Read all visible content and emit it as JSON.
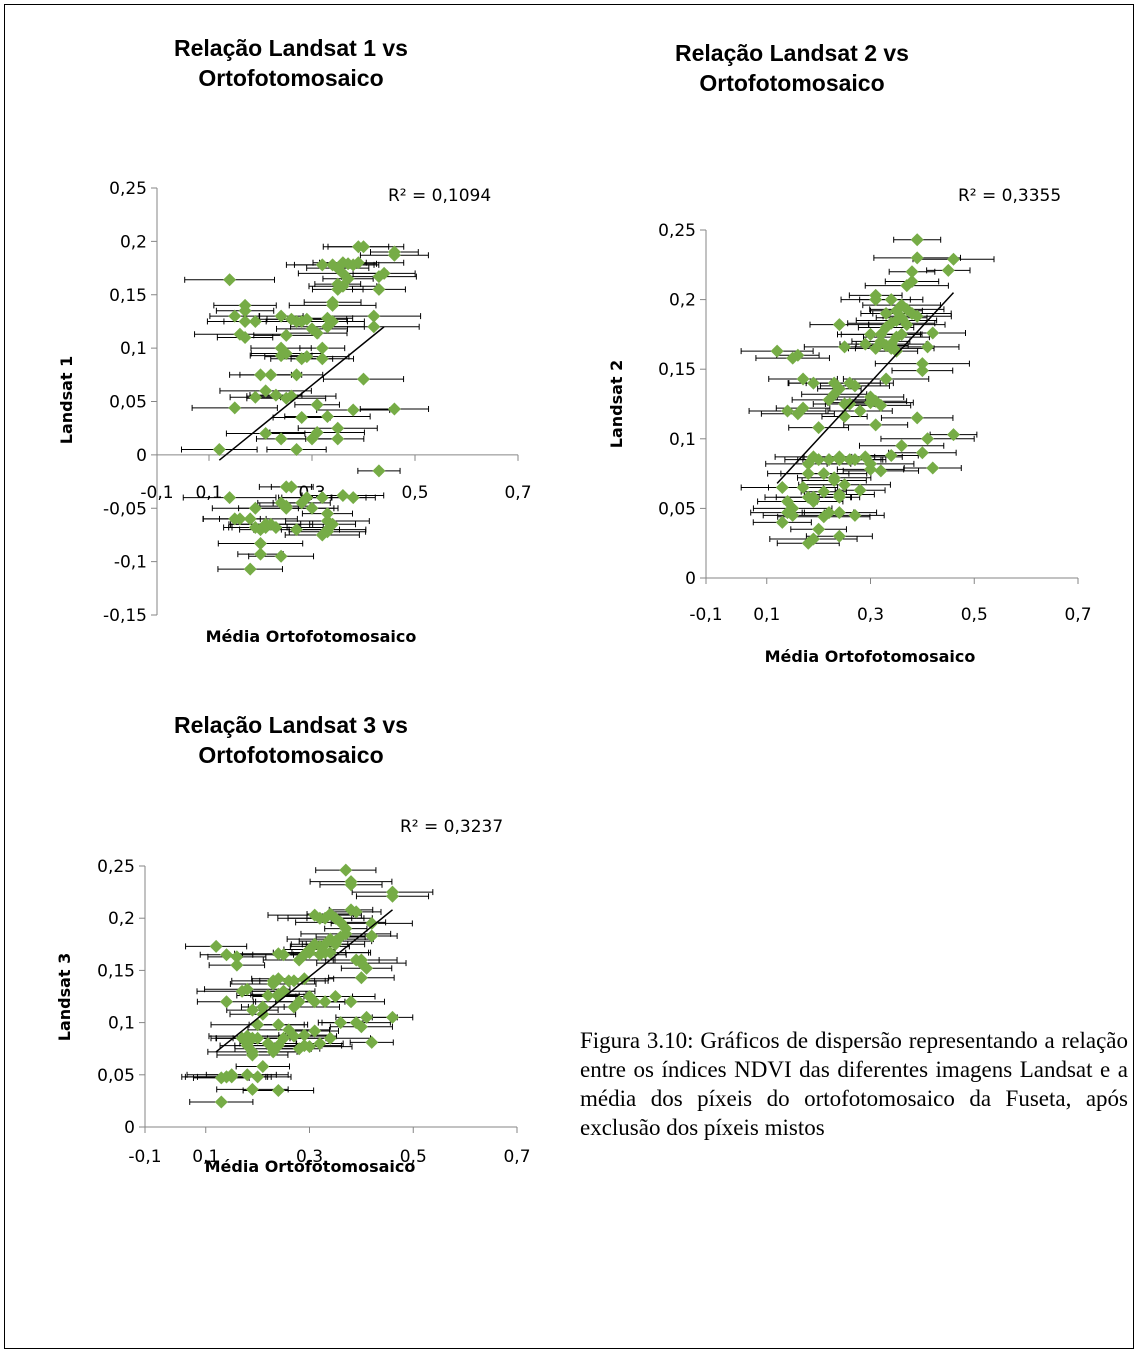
{
  "caption": "Figura 3.10: Gráficos de dispersão representando a relação entre os índices NDVI das diferentes imagens Landsat e a média dos píxeis do ortofotomosaico da Fuseta, após exclusão dos píxeis mistos",
  "colors": {
    "marker": "#76AC46",
    "axis": "#868686",
    "trendline": "#000000",
    "error_bar": "#000000"
  },
  "charts": [
    {
      "title_line1": "Relação Landsat 1 vs",
      "title_line2": "Ortofotomosaico",
      "xlabel": "Média Ortofotomosaico",
      "ylabel": "Landsat 1",
      "r2_label": "R² = 0,1094",
      "x_ticks": [
        "-0,1",
        "0,1",
        "0,3",
        "0,5",
        "0,7"
      ],
      "y_ticks": [
        "-0,15",
        "-0,1",
        "-0,05",
        "0",
        "0,05",
        "0,1",
        "0,15",
        "0,2",
        "0,25"
      ]
    },
    {
      "title_line1": "Relação Landsat 2 vs",
      "title_line2": "Ortofotomosaico",
      "xlabel": "Média Ortofotomosaico",
      "ylabel": "Landsat 2",
      "r2_label": "R² = 0,3355",
      "x_ticks": [
        "-0,1",
        "0,1",
        "0,3",
        "0,5",
        "0,7"
      ],
      "y_ticks": [
        "0",
        "0,05",
        "0,1",
        "0,15",
        "0,2",
        "0,25"
      ]
    },
    {
      "title_line1": "Relação Landsat 3 vs",
      "title_line2": "Ortofotomosaico",
      "xlabel": "Média Ortofotomosaico",
      "ylabel": "Landsat 3",
      "r2_label": "R² = 0,3237",
      "x_ticks": [
        "-0,1",
        "0,1",
        "0,3",
        "0,5",
        "0,7"
      ],
      "y_ticks": [
        "0",
        "0,05",
        "0,1",
        "0,15",
        "0,2",
        "0,25"
      ]
    }
  ],
  "chart_data": [
    {
      "type": "scatter",
      "title": "Relação Landsat 1 vs Ortofotomosaico",
      "xlabel": "Média Ortofotomosaico",
      "ylabel": "Landsat 1",
      "xlim": [
        -0.1,
        0.7
      ],
      "ylim": [
        -0.15,
        0.25
      ],
      "grid": false,
      "error_bars": "horizontal",
      "r_squared": 0.1094,
      "trendline": {
        "x": [
          0.12,
          0.44
        ],
        "y": [
          -0.005,
          0.12
        ]
      },
      "x": [
        0.14,
        0.28,
        0.24,
        0.44,
        0.39,
        0.46,
        0.39,
        0.46,
        0.43,
        0.43,
        0.36,
        0.34,
        0.35,
        0.37,
        0.36,
        0.32,
        0.35,
        0.4,
        0.37,
        0.34,
        0.38,
        0.36,
        0.35,
        0.34,
        0.34,
        0.33,
        0.3,
        0.31,
        0.29,
        0.33,
        0.32,
        0.15,
        0.17,
        0.17,
        0.19,
        0.24,
        0.27,
        0.26,
        0.16,
        0.17,
        0.24,
        0.25,
        0.22,
        0.29,
        0.32,
        0.2,
        0.23,
        0.19,
        0.25,
        0.31,
        0.27,
        0.4,
        0.15,
        0.21,
        0.26,
        0.33,
        0.35,
        0.38,
        0.46,
        0.31,
        0.3,
        0.28,
        0.24,
        0.27,
        0.12,
        0.21,
        0.35,
        0.42,
        0.42,
        0.17,
        0.25,
        0.28,
        0.43,
        0.14,
        0.15,
        0.19,
        0.21,
        0.19,
        0.38,
        0.36,
        0.32,
        0.3,
        0.23,
        0.34,
        0.33,
        0.33,
        0.32,
        0.27,
        0.33,
        0.33,
        0.24,
        0.25,
        0.2,
        0.18,
        0.21,
        0.22,
        0.2,
        0.2,
        0.24,
        0.26,
        0.25,
        0.18,
        0.16,
        0.28,
        0.29,
        0.25
      ],
      "y": [
        0.164,
        0.125,
        0.13,
        0.17,
        0.18,
        0.19,
        0.195,
        0.187,
        0.167,
        0.155,
        0.18,
        0.178,
        0.175,
        0.165,
        0.158,
        0.178,
        0.16,
        0.195,
        0.179,
        0.143,
        0.178,
        0.17,
        0.155,
        0.14,
        0.125,
        0.128,
        0.118,
        0.114,
        0.127,
        0.12,
        0.1,
        0.13,
        0.14,
        0.125,
        0.125,
        0.1,
        0.125,
        0.127,
        0.113,
        0.11,
        0.093,
        0.112,
        0.075,
        0.092,
        0.09,
        0.075,
        0.056,
        0.054,
        0.053,
        0.047,
        0.075,
        0.071,
        0.044,
        0.06,
        0.055,
        0.036,
        0.025,
        0.042,
        0.043,
        0.021,
        0.015,
        0.035,
        0.015,
        0.005,
        0.005,
        0.02,
        0.015,
        0.12,
        0.13,
        0.135,
        0.095,
        0.09,
        -0.015,
        -0.04,
        -0.06,
        -0.05,
        -0.065,
        -0.068,
        -0.04,
        -0.038,
        -0.04,
        -0.05,
        -0.068,
        -0.065,
        -0.07,
        -0.072,
        -0.075,
        -0.07,
        -0.055,
        -0.062,
        -0.045,
        -0.05,
        -0.07,
        -0.06,
        -0.068,
        -0.065,
        -0.083,
        -0.093,
        -0.095,
        -0.03,
        -0.048,
        -0.107,
        -0.06,
        -0.045,
        -0.04,
        -0.03
      ]
    },
    {
      "type": "scatter",
      "title": "Relação Landsat 2 vs Ortofotomosaico",
      "xlabel": "Média Ortofotomosaico",
      "ylabel": "Landsat 2",
      "xlim": [
        -0.1,
        0.7
      ],
      "ylim": [
        0,
        0.25
      ],
      "grid": false,
      "error_bars": "horizontal",
      "r_squared": 0.3355,
      "trendline": {
        "x": [
          0.12,
          0.46
        ],
        "y": [
          0.068,
          0.205
        ]
      },
      "x": [
        0.39,
        0.39,
        0.46,
        0.45,
        0.38,
        0.38,
        0.37,
        0.31,
        0.31,
        0.36,
        0.35,
        0.34,
        0.33,
        0.37,
        0.36,
        0.35,
        0.34,
        0.33,
        0.32,
        0.32,
        0.33,
        0.34,
        0.35,
        0.36,
        0.37,
        0.38,
        0.39,
        0.42,
        0.41,
        0.4,
        0.4,
        0.35,
        0.34,
        0.33,
        0.31,
        0.3,
        0.29,
        0.25,
        0.24,
        0.23,
        0.22,
        0.26,
        0.23,
        0.24,
        0.25,
        0.26,
        0.27,
        0.28,
        0.3,
        0.31,
        0.32,
        0.3,
        0.25,
        0.12,
        0.15,
        0.16,
        0.17,
        0.17,
        0.14,
        0.16,
        0.19,
        0.2,
        0.22,
        0.24,
        0.24,
        0.21,
        0.2,
        0.19,
        0.18,
        0.18,
        0.21,
        0.23,
        0.25,
        0.27,
        0.29,
        0.3,
        0.32,
        0.34,
        0.36,
        0.39,
        0.41,
        0.42,
        0.4,
        0.46,
        0.31,
        0.3,
        0.28,
        0.26,
        0.24,
        0.24,
        0.22,
        0.23,
        0.24,
        0.19,
        0.17,
        0.18,
        0.19,
        0.15,
        0.14,
        0.13,
        0.14,
        0.15,
        0.2,
        0.21,
        0.24,
        0.27,
        0.19,
        0.18,
        0.13
      ],
      "y": [
        0.243,
        0.23,
        0.229,
        0.221,
        0.213,
        0.22,
        0.21,
        0.203,
        0.2,
        0.196,
        0.192,
        0.2,
        0.19,
        0.193,
        0.187,
        0.185,
        0.183,
        0.18,
        0.175,
        0.17,
        0.167,
        0.168,
        0.173,
        0.175,
        0.182,
        0.19,
        0.188,
        0.176,
        0.166,
        0.154,
        0.149,
        0.163,
        0.165,
        0.143,
        0.165,
        0.175,
        0.168,
        0.166,
        0.182,
        0.14,
        0.128,
        0.14,
        0.132,
        0.136,
        0.125,
        0.125,
        0.138,
        0.12,
        0.13,
        0.127,
        0.124,
        0.126,
        0.116,
        0.163,
        0.158,
        0.16,
        0.143,
        0.122,
        0.12,
        0.118,
        0.14,
        0.108,
        0.085,
        0.085,
        0.087,
        0.075,
        0.085,
        0.087,
        0.082,
        0.075,
        0.062,
        0.072,
        0.067,
        0.085,
        0.087,
        0.078,
        0.077,
        0.088,
        0.095,
        0.115,
        0.1,
        0.079,
        0.09,
        0.103,
        0.11,
        0.082,
        0.063,
        0.085,
        0.058,
        0.06,
        0.047,
        0.07,
        0.047,
        0.058,
        0.065,
        0.058,
        0.055,
        0.05,
        0.047,
        0.065,
        0.055,
        0.045,
        0.035,
        0.044,
        0.03,
        0.045,
        0.028,
        0.025,
        0.04
      ]
    },
    {
      "type": "scatter",
      "title": "Relação Landsat 3 vs Ortofotomosaico",
      "xlabel": "Média Ortofotomosaico",
      "ylabel": "Landsat 3",
      "xlim": [
        -0.1,
        0.7
      ],
      "ylim": [
        0,
        0.25
      ],
      "grid": false,
      "error_bars": "horizontal",
      "r_squared": 0.3237,
      "trendline": {
        "x": [
          0.12,
          0.46
        ],
        "y": [
          0.072,
          0.208
        ]
      },
      "x": [
        0.37,
        0.38,
        0.38,
        0.46,
        0.46,
        0.38,
        0.39,
        0.31,
        0.32,
        0.34,
        0.35,
        0.36,
        0.33,
        0.37,
        0.37,
        0.36,
        0.35,
        0.34,
        0.33,
        0.32,
        0.31,
        0.3,
        0.42,
        0.42,
        0.4,
        0.41,
        0.4,
        0.4,
        0.39,
        0.35,
        0.34,
        0.33,
        0.32,
        0.3,
        0.29,
        0.28,
        0.25,
        0.24,
        0.23,
        0.26,
        0.23,
        0.24,
        0.27,
        0.29,
        0.25,
        0.28,
        0.3,
        0.31,
        0.33,
        0.35,
        0.38,
        0.27,
        0.12,
        0.14,
        0.16,
        0.16,
        0.14,
        0.17,
        0.18,
        0.19,
        0.21,
        0.22,
        0.24,
        0.24,
        0.21,
        0.2,
        0.19,
        0.18,
        0.18,
        0.2,
        0.23,
        0.25,
        0.27,
        0.29,
        0.3,
        0.32,
        0.34,
        0.36,
        0.39,
        0.41,
        0.42,
        0.4,
        0.46,
        0.31,
        0.29,
        0.28,
        0.26,
        0.24,
        0.24,
        0.22,
        0.23,
        0.19,
        0.17,
        0.18,
        0.19,
        0.15,
        0.14,
        0.13,
        0.14,
        0.15,
        0.2,
        0.21,
        0.24,
        0.19,
        0.18,
        0.13
      ],
      "y": [
        0.246,
        0.235,
        0.232,
        0.225,
        0.221,
        0.208,
        0.206,
        0.203,
        0.2,
        0.204,
        0.2,
        0.196,
        0.2,
        0.19,
        0.185,
        0.182,
        0.178,
        0.18,
        0.175,
        0.173,
        0.175,
        0.17,
        0.195,
        0.183,
        0.157,
        0.152,
        0.143,
        0.16,
        0.16,
        0.175,
        0.167,
        0.167,
        0.165,
        0.167,
        0.165,
        0.16,
        0.165,
        0.166,
        0.14,
        0.14,
        0.137,
        0.142,
        0.14,
        0.142,
        0.13,
        0.12,
        0.125,
        0.12,
        0.12,
        0.125,
        0.12,
        0.115,
        0.173,
        0.165,
        0.163,
        0.155,
        0.12,
        0.13,
        0.132,
        0.112,
        0.115,
        0.126,
        0.127,
        0.125,
        0.108,
        0.098,
        0.085,
        0.085,
        0.087,
        0.085,
        0.075,
        0.085,
        0.087,
        0.078,
        0.077,
        0.08,
        0.085,
        0.1,
        0.1,
        0.105,
        0.081,
        0.096,
        0.105,
        0.092,
        0.088,
        0.075,
        0.093,
        0.098,
        0.078,
        0.08,
        0.072,
        0.072,
        0.085,
        0.078,
        0.069,
        0.05,
        0.048,
        0.047,
        0.048,
        0.048,
        0.048,
        0.058,
        0.035,
        0.036,
        0.05,
        0.024
      ]
    }
  ]
}
